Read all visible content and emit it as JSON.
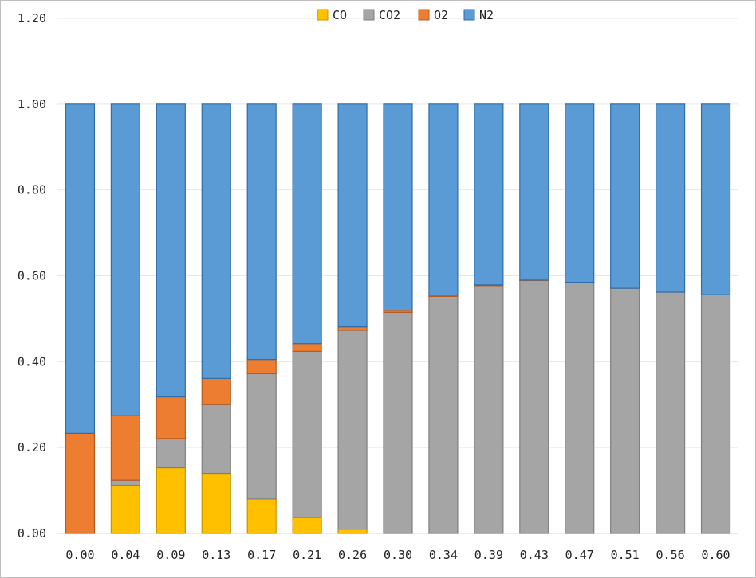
{
  "chart_data": {
    "type": "bar",
    "stacked": true,
    "categories": [
      "0.00",
      "0.04",
      "0.09",
      "0.13",
      "0.17",
      "0.21",
      "0.26",
      "0.30",
      "0.34",
      "0.39",
      "0.43",
      "0.47",
      "0.51",
      "0.56",
      "0.60"
    ],
    "series": [
      {
        "name": "CO",
        "color": "#ffc000",
        "values": [
          0.0,
          0.112,
          0.153,
          0.14,
          0.08,
          0.037,
          0.01,
          0.0,
          0.0,
          0.0,
          0.0,
          0.0,
          0.0,
          0.0,
          0.0
        ]
      },
      {
        "name": "CO2",
        "color": "#a5a5a5",
        "values": [
          0.0,
          0.012,
          0.068,
          0.16,
          0.292,
          0.387,
          0.463,
          0.515,
          0.552,
          0.577,
          0.589,
          0.584,
          0.571,
          0.562,
          0.556
        ]
      },
      {
        "name": "O2",
        "color": "#ed7d31",
        "values": [
          0.233,
          0.15,
          0.097,
          0.061,
          0.033,
          0.018,
          0.008,
          0.005,
          0.003,
          0.002,
          0.001,
          0.001,
          0.0,
          0.0,
          0.0
        ]
      },
      {
        "name": "N2",
        "color": "#5b9bd5",
        "values": [
          0.767,
          0.726,
          0.682,
          0.639,
          0.595,
          0.558,
          0.519,
          0.48,
          0.445,
          0.421,
          0.41,
          0.415,
          0.429,
          0.438,
          0.444
        ]
      }
    ],
    "y_ticks": [
      "0.00",
      "0.20",
      "0.40",
      "0.60",
      "0.80",
      "1.00",
      "1.20"
    ],
    "ylim": [
      0,
      1.2
    ],
    "grid": true,
    "legend_position": "top"
  }
}
